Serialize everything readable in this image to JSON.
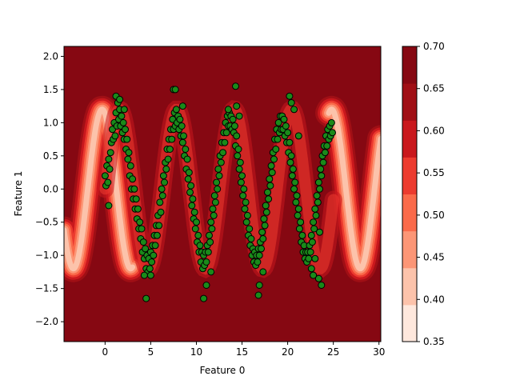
{
  "chart_data": {
    "type": "scatter",
    "title": "",
    "xlabel": "Feature 0",
    "ylabel": "Feature 1",
    "xlim": [
      -4.5,
      30.2
    ],
    "ylim": [
      -2.3,
      2.15
    ],
    "xticks": [
      0,
      5,
      10,
      15,
      20,
      25,
      30
    ],
    "yticks": [
      -2.0,
      -1.5,
      -1.0,
      -0.5,
      0.0,
      0.5,
      1.0,
      1.5,
      2.0
    ],
    "xtick_labels": [
      "0",
      "5",
      "10",
      "15",
      "20",
      "25",
      "30"
    ],
    "ytick_labels": [
      "−2.0",
      "−1.5",
      "−1.0",
      "−0.5",
      "0.0",
      "0.5",
      "1.0",
      "1.5",
      "2.0"
    ],
    "background": "filled contour of decision function (Reds colormap)",
    "point_color": "#1a8a1a",
    "point_edge_color": "#000000",
    "data_curve": "y = 1.05*sin(x) + 0.2 sin-band, points sampled densely along x in [0, 25]",
    "points": [
      [
        0.0,
        0.2
      ],
      [
        0.1,
        0.05
      ],
      [
        0.2,
        0.35
      ],
      [
        0.3,
        0.1
      ],
      [
        0.4,
        0.45
      ],
      [
        0.5,
        0.3
      ],
      [
        0.6,
        0.55
      ],
      [
        0.7,
        0.7
      ],
      [
        0.8,
        0.9
      ],
      [
        0.9,
        0.75
      ],
      [
        1.0,
        1.0
      ],
      [
        1.1,
        0.8
      ],
      [
        1.2,
        1.15
      ],
      [
        1.3,
        0.95
      ],
      [
        1.4,
        1.3
      ],
      [
        1.5,
        1.05
      ],
      [
        1.6,
        1.2
      ],
      [
        1.7,
        0.95
      ],
      [
        1.8,
        1.1
      ],
      [
        1.9,
        0.85
      ],
      [
        2.0,
        1.0
      ],
      [
        2.1,
        0.75
      ],
      [
        2.2,
        0.9
      ],
      [
        2.3,
        0.6
      ],
      [
        2.4,
        0.75
      ],
      [
        2.5,
        0.45
      ],
      [
        2.6,
        0.55
      ],
      [
        2.7,
        0.2
      ],
      [
        2.8,
        0.35
      ],
      [
        2.9,
        0.0
      ],
      [
        3.0,
        0.15
      ],
      [
        3.1,
        -0.15
      ],
      [
        3.2,
        0.0
      ],
      [
        3.3,
        -0.3
      ],
      [
        3.4,
        -0.15
      ],
      [
        3.5,
        -0.45
      ],
      [
        3.6,
        -0.3
      ],
      [
        3.7,
        -0.6
      ],
      [
        3.8,
        -0.5
      ],
      [
        3.9,
        -0.75
      ],
      [
        4.0,
        -0.6
      ],
      [
        4.1,
        -0.95
      ],
      [
        4.2,
        -0.8
      ],
      [
        4.3,
        -1.05
      ],
      [
        4.4,
        -0.9
      ],
      [
        4.5,
        -1.2
      ],
      [
        4.6,
        -1.0
      ],
      [
        4.7,
        -1.25
      ],
      [
        4.8,
        -1.05
      ],
      [
        4.9,
        -1.2
      ],
      [
        5.0,
        -0.95
      ],
      [
        5.1,
        -1.1
      ],
      [
        5.2,
        -0.85
      ],
      [
        5.3,
        -1.0
      ],
      [
        5.4,
        -0.7
      ],
      [
        5.5,
        -0.85
      ],
      [
        5.6,
        -0.55
      ],
      [
        5.7,
        -0.7
      ],
      [
        5.8,
        -0.4
      ],
      [
        5.9,
        -0.55
      ],
      [
        6.0,
        -0.2
      ],
      [
        6.1,
        -0.35
      ],
      [
        6.2,
        0.0
      ],
      [
        6.3,
        -0.1
      ],
      [
        6.4,
        0.2
      ],
      [
        6.5,
        0.1
      ],
      [
        6.6,
        0.4
      ],
      [
        6.7,
        0.3
      ],
      [
        6.8,
        0.6
      ],
      [
        6.9,
        0.45
      ],
      [
        7.0,
        0.75
      ],
      [
        7.1,
        0.6
      ],
      [
        7.2,
        0.9
      ],
      [
        7.3,
        0.75
      ],
      [
        7.4,
        1.05
      ],
      [
        7.5,
        0.9
      ],
      [
        7.6,
        1.15
      ],
      [
        7.7,
        0.95
      ],
      [
        7.8,
        1.2
      ],
      [
        7.9,
        1.0
      ],
      [
        8.0,
        1.1
      ],
      [
        8.1,
        0.9
      ],
      [
        8.2,
        1.05
      ],
      [
        8.3,
        0.8
      ],
      [
        8.4,
        0.95
      ],
      [
        8.5,
        0.7
      ],
      [
        8.6,
        0.8
      ],
      [
        8.7,
        0.5
      ],
      [
        8.8,
        0.6
      ],
      [
        8.9,
        0.3
      ],
      [
        9.0,
        0.45
      ],
      [
        9.1,
        0.15
      ],
      [
        9.2,
        0.25
      ],
      [
        9.3,
        -0.05
      ],
      [
        9.4,
        0.05
      ],
      [
        9.5,
        -0.25
      ],
      [
        9.6,
        -0.15
      ],
      [
        9.7,
        -0.45
      ],
      [
        9.8,
        -0.35
      ],
      [
        9.9,
        -0.6
      ],
      [
        10.0,
        -0.5
      ],
      [
        10.1,
        -0.8
      ],
      [
        10.2,
        -0.7
      ],
      [
        10.3,
        -0.95
      ],
      [
        10.4,
        -0.85
      ],
      [
        10.5,
        -1.1
      ],
      [
        10.6,
        -0.95
      ],
      [
        10.7,
        -1.2
      ],
      [
        10.8,
        -1.0
      ],
      [
        10.9,
        -1.15
      ],
      [
        11.0,
        -0.95
      ],
      [
        11.1,
        -1.1
      ],
      [
        11.2,
        -0.85
      ],
      [
        11.3,
        -0.95
      ],
      [
        11.4,
        -0.7
      ],
      [
        11.5,
        -0.8
      ],
      [
        11.6,
        -0.5
      ],
      [
        11.7,
        -0.6
      ],
      [
        11.8,
        -0.3
      ],
      [
        11.9,
        -0.4
      ],
      [
        12.0,
        -0.1
      ],
      [
        12.1,
        -0.2
      ],
      [
        12.2,
        0.1
      ],
      [
        12.3,
        0.0
      ],
      [
        12.4,
        0.3
      ],
      [
        12.5,
        0.2
      ],
      [
        12.6,
        0.5
      ],
      [
        12.7,
        0.4
      ],
      [
        12.8,
        0.7
      ],
      [
        12.9,
        0.55
      ],
      [
        13.0,
        0.85
      ],
      [
        13.1,
        0.7
      ],
      [
        13.2,
        1.0
      ],
      [
        13.3,
        0.85
      ],
      [
        13.4,
        1.1
      ],
      [
        13.5,
        0.95
      ],
      [
        13.6,
        1.15
      ],
      [
        13.7,
        0.95
      ],
      [
        13.8,
        1.1
      ],
      [
        13.9,
        0.9
      ],
      [
        14.0,
        1.05
      ],
      [
        14.1,
        0.85
      ],
      [
        14.2,
        0.95
      ],
      [
        14.3,
        0.65
      ],
      [
        14.4,
        0.8
      ],
      [
        14.5,
        0.5
      ],
      [
        14.6,
        0.6
      ],
      [
        14.7,
        0.3
      ],
      [
        14.8,
        0.4
      ],
      [
        14.9,
        0.1
      ],
      [
        15.0,
        0.2
      ],
      [
        15.1,
        -0.1
      ],
      [
        15.2,
        0.0
      ],
      [
        15.3,
        -0.3
      ],
      [
        15.4,
        -0.2
      ],
      [
        15.5,
        -0.5
      ],
      [
        15.6,
        -0.4
      ],
      [
        15.7,
        -0.7
      ],
      [
        15.8,
        -0.6
      ],
      [
        15.9,
        -0.85
      ],
      [
        16.0,
        -0.75
      ],
      [
        16.1,
        -1.0
      ],
      [
        16.2,
        -0.9
      ],
      [
        16.3,
        -1.1
      ],
      [
        16.4,
        -0.95
      ],
      [
        16.5,
        -1.15
      ],
      [
        16.6,
        -1.0
      ],
      [
        16.7,
        -1.1
      ],
      [
        16.8,
        -0.9
      ],
      [
        16.9,
        -1.0
      ],
      [
        17.0,
        -0.8
      ],
      [
        17.1,
        -0.9
      ],
      [
        17.2,
        -0.65
      ],
      [
        17.3,
        -0.75
      ],
      [
        17.4,
        -0.45
      ],
      [
        17.5,
        -0.55
      ],
      [
        17.6,
        -0.25
      ],
      [
        17.7,
        -0.35
      ],
      [
        17.8,
        -0.05
      ],
      [
        17.9,
        -0.15
      ],
      [
        18.0,
        0.15
      ],
      [
        18.1,
        0.05
      ],
      [
        18.2,
        0.35
      ],
      [
        18.3,
        0.25
      ],
      [
        18.4,
        0.55
      ],
      [
        18.5,
        0.45
      ],
      [
        18.6,
        0.75
      ],
      [
        18.7,
        0.6
      ],
      [
        18.8,
        0.9
      ],
      [
        18.9,
        0.75
      ],
      [
        19.0,
        1.0
      ],
      [
        19.1,
        0.85
      ],
      [
        19.2,
        1.1
      ],
      [
        19.3,
        0.9
      ],
      [
        19.4,
        1.1
      ],
      [
        19.5,
        0.9
      ],
      [
        19.6,
        1.05
      ],
      [
        19.7,
        0.8
      ],
      [
        19.8,
        0.95
      ],
      [
        19.9,
        0.7
      ],
      [
        20.0,
        0.85
      ],
      [
        20.1,
        0.55
      ],
      [
        20.2,
        0.7
      ],
      [
        20.3,
        0.4
      ],
      [
        20.4,
        0.5
      ],
      [
        20.5,
        0.2
      ],
      [
        20.6,
        0.3
      ],
      [
        20.7,
        0.0
      ],
      [
        20.8,
        0.1
      ],
      [
        20.9,
        -0.2
      ],
      [
        21.0,
        -0.1
      ],
      [
        21.1,
        -0.4
      ],
      [
        21.2,
        -0.3
      ],
      [
        21.3,
        -0.6
      ],
      [
        21.4,
        -0.5
      ],
      [
        21.5,
        -0.8
      ],
      [
        21.6,
        -0.7
      ],
      [
        21.7,
        -0.95
      ],
      [
        21.8,
        -0.85
      ],
      [
        21.9,
        -1.05
      ],
      [
        22.0,
        -0.95
      ],
      [
        22.1,
        -1.1
      ],
      [
        22.2,
        -0.95
      ],
      [
        22.3,
        -1.05
      ],
      [
        22.4,
        -0.85
      ],
      [
        22.5,
        -0.95
      ],
      [
        22.6,
        -0.7
      ],
      [
        22.7,
        -0.8
      ],
      [
        22.8,
        -0.5
      ],
      [
        22.9,
        -0.6
      ],
      [
        23.0,
        -0.3
      ],
      [
        23.1,
        -0.4
      ],
      [
        23.2,
        -0.1
      ],
      [
        23.3,
        -0.2
      ],
      [
        23.4,
        0.1
      ],
      [
        23.5,
        0.0
      ],
      [
        23.6,
        0.3
      ],
      [
        23.7,
        0.2
      ],
      [
        23.8,
        0.5
      ],
      [
        23.9,
        0.4
      ],
      [
        24.0,
        0.65
      ],
      [
        24.1,
        0.55
      ],
      [
        24.2,
        0.8
      ],
      [
        24.3,
        0.65
      ],
      [
        24.4,
        0.9
      ],
      [
        24.5,
        0.75
      ],
      [
        24.6,
        0.95
      ],
      [
        24.7,
        0.8
      ],
      [
        24.8,
        1.0
      ],
      [
        24.9,
        0.85
      ],
      [
        1.2,
        1.4
      ],
      [
        1.6,
        1.35
      ],
      [
        7.5,
        1.5
      ],
      [
        7.7,
        1.5
      ],
      [
        14.3,
        1.55
      ],
      [
        20.2,
        1.4
      ],
      [
        20.4,
        1.3
      ],
      [
        4.5,
        -1.65
      ],
      [
        4.3,
        -1.3
      ],
      [
        10.8,
        -1.65
      ],
      [
        11.1,
        -1.45
      ],
      [
        16.8,
        -1.6
      ],
      [
        16.9,
        -1.45
      ],
      [
        23.4,
        -1.35
      ],
      [
        23.7,
        -1.45
      ],
      [
        0.4,
        -0.25
      ],
      [
        13.5,
        1.2
      ],
      [
        8.5,
        1.25
      ],
      [
        2.1,
        1.2
      ],
      [
        20.7,
        1.2
      ],
      [
        22.6,
        -1.2
      ],
      [
        17.3,
        -1.25
      ],
      [
        5.0,
        -1.3
      ],
      [
        11.6,
        -1.25
      ],
      [
        21.2,
        0.8
      ],
      [
        14.4,
        1.25
      ],
      [
        14.7,
        1.1
      ],
      [
        23.0,
        -1.05
      ],
      [
        22.8,
        -1.3
      ],
      [
        23.5,
        -0.65
      ]
    ],
    "colorbar": {
      "ticks": [
        "0.35",
        "0.40",
        "0.45",
        "0.50",
        "0.55",
        "0.60",
        "0.65",
        "0.70"
      ],
      "colors": [
        "#fee8dd",
        "#fcc3ab",
        "#fc9676",
        "#fa6a4a",
        "#ec3b2f",
        "#c9181d",
        "#a00f15",
        "#860812"
      ]
    }
  }
}
